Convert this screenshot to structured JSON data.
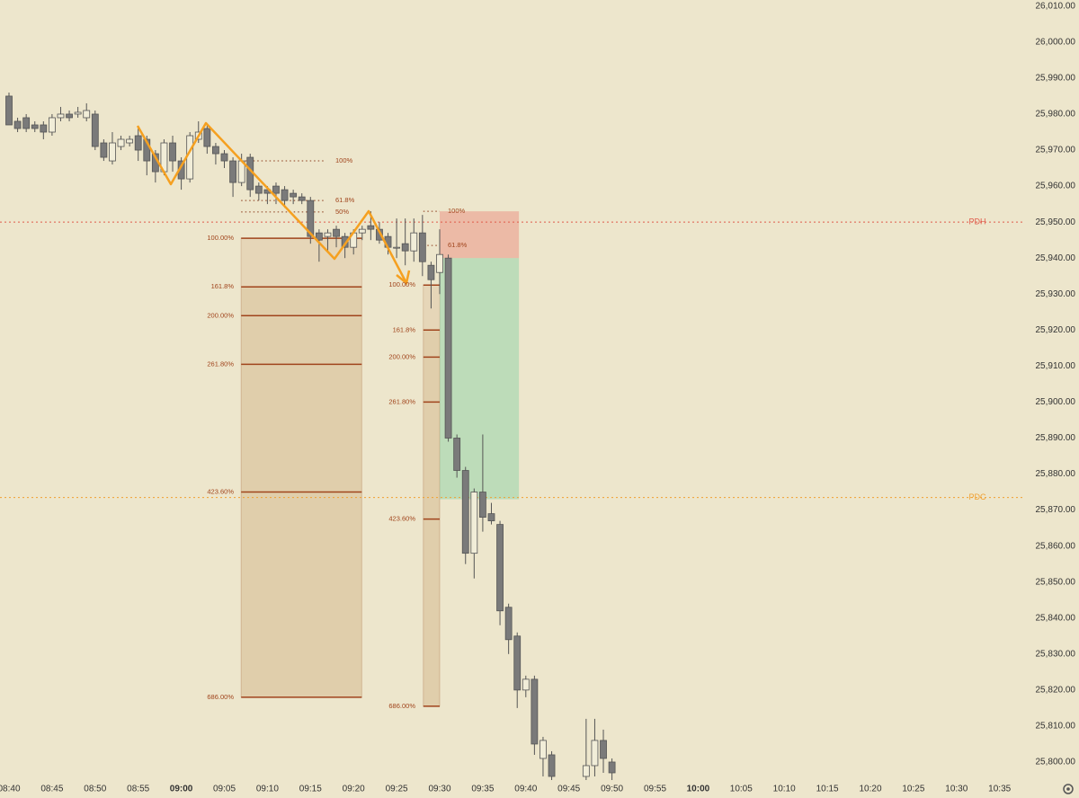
{
  "chart_data": {
    "type": "candlestick",
    "x": [
      "08:40",
      "08:41",
      "08:42",
      "08:43",
      "08:44",
      "08:45",
      "08:46",
      "08:47",
      "08:48",
      "08:49",
      "08:50",
      "08:51",
      "08:52",
      "08:53",
      "08:54",
      "08:55",
      "08:56",
      "08:57",
      "08:58",
      "08:59",
      "09:00",
      "09:01",
      "09:02",
      "09:03",
      "09:04",
      "09:05",
      "09:06",
      "09:07",
      "09:08",
      "09:09",
      "09:10",
      "09:11",
      "09:12",
      "09:13",
      "09:14",
      "09:15",
      "09:16",
      "09:17",
      "09:18",
      "09:19",
      "09:20",
      "09:21",
      "09:22",
      "09:23",
      "09:24",
      "09:25",
      "09:26",
      "09:27",
      "09:28",
      "09:29",
      "09:30",
      "09:31",
      "09:32",
      "09:33",
      "09:34",
      "09:35",
      "09:36",
      "09:37",
      "09:38",
      "09:39",
      "09:40",
      "09:41",
      "09:42",
      "09:43",
      "09:47",
      "09:48",
      "09:49",
      "09:50"
    ],
    "open": [
      25985,
      25978,
      25979,
      25977,
      25977,
      25975,
      25979,
      25980,
      25980,
      25979,
      25980,
      25972,
      25967,
      25971,
      25972,
      25974,
      25973,
      25969,
      25964,
      25972,
      25967,
      25962,
      25973,
      25976,
      25971,
      25969,
      25967,
      25961,
      25968,
      25960,
      25959,
      25960,
      25959,
      25958,
      25957,
      25956,
      25947,
      25946,
      25948,
      25946,
      25943,
      25947,
      25949,
      25948,
      25946,
      25943,
      25944,
      25942,
      25947,
      25938,
      25936,
      25940,
      25890,
      25881,
      25858,
      25875,
      25869,
      25866,
      25843,
      25835,
      25820,
      25823,
      25801,
      25802,
      25796,
      25799,
      25806,
      25800
    ],
    "high": [
      25986,
      25979,
      25980,
      25978,
      25978,
      25980,
      25982,
      25981,
      25982,
      25983,
      25981,
      25973,
      25975,
      25974,
      25974,
      25976,
      25974,
      25970,
      25973,
      25974,
      25968,
      25975,
      25978,
      25977,
      25972,
      25970,
      25968,
      25969,
      25969,
      25961,
      25960,
      25961,
      25960,
      25959,
      25958,
      25957,
      25948,
      25948,
      25949,
      25947,
      25948,
      25949,
      25953,
      25950,
      25947,
      25951,
      25951,
      25951,
      25952,
      25939,
      25948,
      25941,
      25891,
      25882,
      25876,
      25891,
      25872,
      25867,
      25844,
      25836,
      25824,
      25824,
      25807,
      25803,
      25812,
      25812,
      25809,
      25801
    ],
    "low": [
      25977,
      25975,
      25975,
      25975,
      25973,
      25974,
      25978,
      25978,
      25979,
      25978,
      25970,
      25967,
      25966,
      25970,
      25971,
      25967,
      25963,
      25961,
      25963,
      25964,
      25959,
      25961,
      25972,
      25969,
      25966,
      25965,
      25957,
      25960,
      25957,
      25956,
      25955,
      25955,
      25954,
      25955,
      25955,
      25944,
      25939,
      25942,
      25943,
      25940,
      25941,
      25945,
      25945,
      25944,
      25941,
      25940,
      25938,
      25939,
      25935,
      25926,
      25930,
      25889,
      25879,
      25855,
      25851,
      25864,
      25866,
      25838,
      25830,
      25815,
      25818,
      25802,
      25796,
      25794,
      25794,
      25796,
      25797,
      25794
    ],
    "close": [
      25977,
      25976,
      25976,
      25976,
      25975,
      25979,
      25980,
      25979,
      25980.5,
      25981,
      25971,
      25968,
      25972,
      25973,
      25973,
      25970,
      25967,
      25964,
      25972,
      25967,
      25962,
      25974,
      25975,
      25971,
      25969,
      25967,
      25961,
      25967,
      25959,
      25958,
      25958,
      25958,
      25956,
      25957,
      25956,
      25946,
      25945,
      25947,
      25946,
      25943,
      25947,
      25948,
      25948,
      25945,
      25943,
      25943,
      25942,
      25947,
      25939,
      25934,
      25941,
      25890,
      25881,
      25858,
      25875,
      25868,
      25867,
      25842,
      25834,
      25820,
      25823,
      25805,
      25806,
      25796,
      25799,
      25806,
      25801,
      25797
    ],
    "bull_color": "#f1edd8",
    "bear_color": "#7a7a7a",
    "ylim": [
      25795,
      26011.7
    ],
    "yticks": [
      {
        "value": 25800,
        "label": "25,800.00"
      },
      {
        "value": 25810,
        "label": "25,810.00"
      },
      {
        "value": 25820,
        "label": "25,820.00"
      },
      {
        "value": 25830,
        "label": "25,830.00"
      },
      {
        "value": 25840,
        "label": "25,840.00"
      },
      {
        "value": 25850,
        "label": "25,850.00"
      },
      {
        "value": 25860,
        "label": "25,860.00"
      },
      {
        "value": 25870,
        "label": "25,870.00"
      },
      {
        "value": 25880,
        "label": "25,880.00"
      },
      {
        "value": 25890,
        "label": "25,890.00"
      },
      {
        "value": 25900,
        "label": "25,900.00"
      },
      {
        "value": 25910,
        "label": "25,910.00"
      },
      {
        "value": 25920,
        "label": "25,920.00"
      },
      {
        "value": 25930,
        "label": "25,930.00"
      },
      {
        "value": 25940,
        "label": "25,940.00"
      },
      {
        "value": 25950,
        "label": "25,950.00"
      },
      {
        "value": 25960,
        "label": "25,960.00"
      },
      {
        "value": 25970,
        "label": "25,970.00"
      },
      {
        "value": 25980,
        "label": "25,980.00"
      },
      {
        "value": 25990,
        "label": "25,990.00"
      },
      {
        "value": 26000,
        "label": "26,000.00"
      },
      {
        "value": 26010,
        "label": "26,010.00"
      }
    ],
    "time_ticks": [
      "08:40",
      "08:45",
      "08:50",
      "08:55",
      "09:00",
      "09:05",
      "09:10",
      "09:15",
      "09:20",
      "09:25",
      "09:30",
      "09:35",
      "09:40",
      "09:45",
      "09:50",
      "09:55",
      "10:00",
      "10:05",
      "10:10",
      "10:15",
      "10:20",
      "10:25",
      "10:30",
      "10:35"
    ],
    "levels": [
      {
        "name": "PDH",
        "value": 25950,
        "color": "#e05a4a"
      },
      {
        "name": "PDC",
        "value": 25873.5,
        "color": "#f0a030"
      }
    ],
    "fibs": [
      {
        "levels": [
          {
            "label": "100.00%",
            "value": 25945.5
          },
          {
            "label": "161.8%",
            "value": 25932
          },
          {
            "label": "200.00%",
            "value": 25924
          },
          {
            "label": "261.80%",
            "value": 25910.5
          },
          {
            "label": "423.60%",
            "value": 25875
          },
          {
            "label": "686.00%",
            "value": 25818
          }
        ]
      },
      {
        "levels": [
          {
            "label": "100.00%",
            "value": 25932.5
          },
          {
            "label": "161.8%",
            "value": 25920
          },
          {
            "label": "200.00%",
            "value": 25912.5
          },
          {
            "label": "261.80%",
            "value": 25900
          },
          {
            "label": "423.60%",
            "value": 25867.5
          },
          {
            "label": "686.00%",
            "value": 25815.5
          }
        ]
      },
      {
        "levels": [
          {
            "label": "100%",
            "value": 25967
          },
          {
            "label": "61.8%",
            "value": 25956
          },
          {
            "label": "50%",
            "value": 25952.8
          }
        ]
      },
      {
        "levels": [
          {
            "label": "100%",
            "value": 25953
          },
          {
            "label": "61.8%",
            "value": 25943.5
          }
        ]
      }
    ],
    "position": {
      "stop": 25953,
      "entry": 25940,
      "target": 25873
    }
  }
}
